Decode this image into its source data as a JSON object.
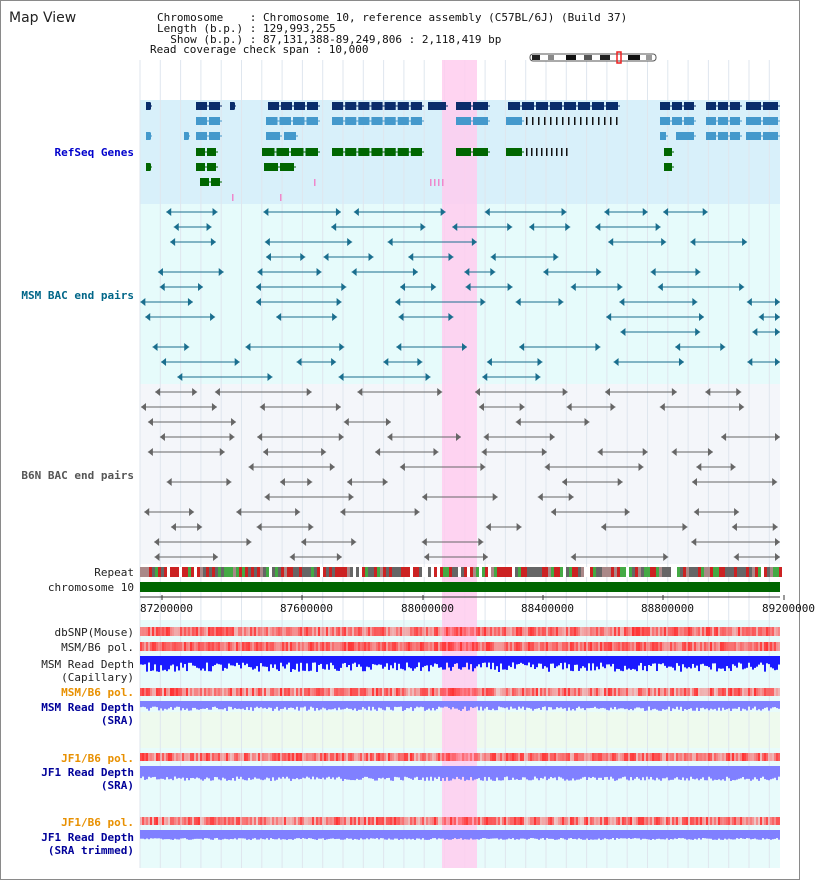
{
  "header": {
    "title": "Map View",
    "info_lines": [
      "Chromosome    : Chromosome 10, reference assembly (C57BL/6J) (Build 37)",
      "Length (b.p.) : 129,993,255",
      "  Show (b.p.) : 87,131,388-89,249,806 : 2,118,419 bp",
      "Read coverage check span : 10,000"
    ]
  },
  "tracks": {
    "refseq": "RefSeq Genes",
    "msm_bac": "MSM BAC end pairs",
    "b6n_bac": "B6N BAC end pairs",
    "repeat": "Repeat",
    "chromosome": "chromosome 10",
    "dbsnp": "dbSNP(Mouse)",
    "msm_b6_pol_1": "MSM/B6 pol.",
    "msm_read_depth_cap_1": "MSM Read Depth",
    "msm_read_depth_cap_2": "(Capillary)",
    "msm_b6_pol_2": "MSM/B6 pol.",
    "msm_read_depth_sra_1": "MSM Read Depth",
    "msm_read_depth_sra_2": "(SRA)",
    "jf1_b6_pol_1": "JF1/B6 pol.",
    "jf1_read_depth_sra_1": "JF1 Read Depth",
    "jf1_read_depth_sra_2": "(SRA)",
    "jf1_b6_pol_2": "JF1/B6 pol.",
    "jf1_read_depth_trim_1": "JF1 Read Depth",
    "jf1_read_depth_trim_2": "(SRA trimmed)"
  },
  "axis": {
    "ticks": [
      "87200000",
      "87600000",
      "88000000",
      "88400000",
      "88800000",
      "89200000"
    ]
  },
  "colors": {
    "refseq_label": "#0000cc",
    "msm_label": "#006688",
    "orange_label": "#e89000",
    "navy_label": "#000099",
    "highlight": "#ffccee",
    "gene_dark": "#0b2d6b",
    "gene_mid": "#4499cc",
    "gene_green": "#006600",
    "msm_line": "#1a6e8e",
    "b6n_line": "#666666",
    "depth_blue": "#1a1aff",
    "depth_light": "#8080ff"
  }
}
